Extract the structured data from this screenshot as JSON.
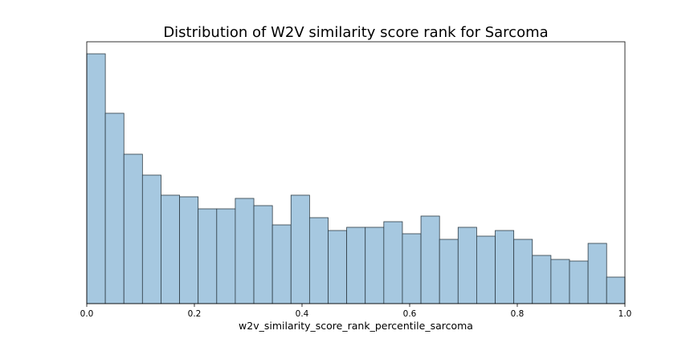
{
  "chart_data": {
    "type": "bar",
    "title": "Distribution of W2V similarity score rank for Sarcoma",
    "xlabel": "w2v_similarity_score_rank_percentile_sarcoma",
    "ylabel": "",
    "xlim": [
      0.0,
      1.0
    ],
    "bin_count": 29,
    "bin_width": 0.0345,
    "x_ticks": [
      "0.0",
      "0.2",
      "0.4",
      "0.6",
      "0.8",
      "1.0"
    ],
    "x_tick_values": [
      0.0,
      0.2,
      0.4,
      0.6,
      0.8,
      1.0
    ],
    "y_ticks_visible": false,
    "grid": false,
    "values": [
      311,
      237,
      186,
      160,
      135,
      133,
      118,
      118,
      131,
      122,
      98,
      135,
      107,
      91,
      95,
      95,
      102,
      87,
      109,
      80,
      95,
      84,
      91,
      80,
      60,
      55,
      53,
      75,
      33
    ],
    "ylim": [
      0,
      326
    ],
    "bar_color": "#a6c8e0",
    "edge_color": "#2f3d46"
  }
}
